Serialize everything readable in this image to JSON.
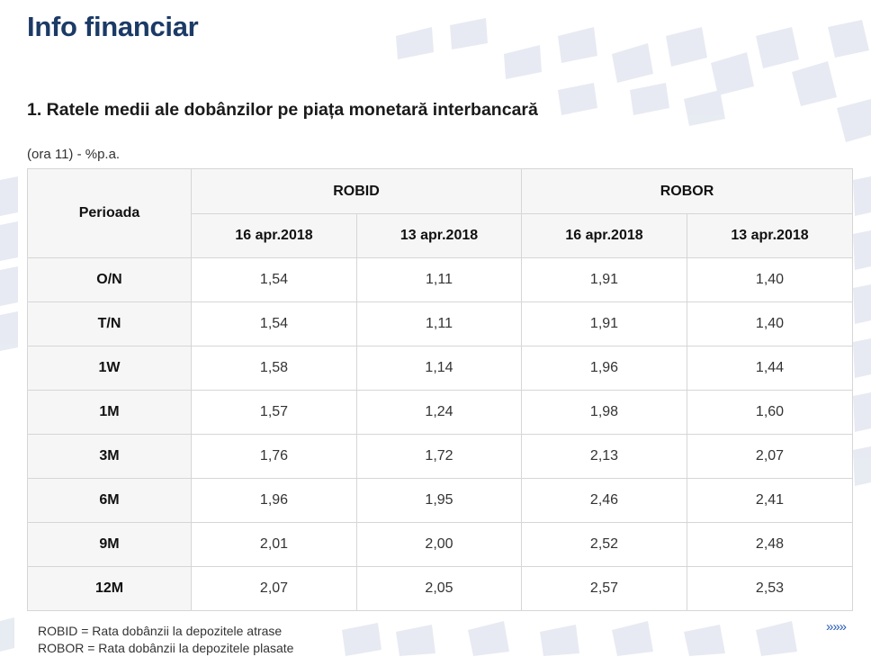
{
  "page": {
    "title": "Info financiar",
    "section_title": "1. Ratele medii ale dobânzilor pe piața monetară interbancară",
    "unit_note": "(ora 11) - %p.a."
  },
  "table": {
    "period_header": "Perioada",
    "group_headers": [
      "ROBID",
      "ROBOR"
    ],
    "date_headers": [
      "16 apr.2018",
      "13 apr.2018",
      "16 apr.2018",
      "13 apr.2018"
    ],
    "rows": [
      {
        "period": "O/N",
        "values": [
          "1,54",
          "1,11",
          "1,91",
          "1,40"
        ]
      },
      {
        "period": "T/N",
        "values": [
          "1,54",
          "1,11",
          "1,91",
          "1,40"
        ]
      },
      {
        "period": "1W",
        "values": [
          "1,58",
          "1,14",
          "1,96",
          "1,44"
        ]
      },
      {
        "period": "1M",
        "values": [
          "1,57",
          "1,24",
          "1,98",
          "1,60"
        ]
      },
      {
        "period": "3M",
        "values": [
          "1,76",
          "1,72",
          "2,13",
          "2,07"
        ]
      },
      {
        "period": "6M",
        "values": [
          "1,96",
          "1,95",
          "2,46",
          "2,41"
        ]
      },
      {
        "period": "9M",
        "values": [
          "2,01",
          "2,00",
          "2,52",
          "2,48"
        ]
      },
      {
        "period": "12M",
        "values": [
          "2,07",
          "2,05",
          "2,57",
          "2,53"
        ]
      }
    ]
  },
  "legend": {
    "robid": "ROBID = Rata dobânzii la depozitele atrase",
    "robor": "ROBOR = Rata dobânzii la depozitele plasate"
  },
  "more_link": "»»»",
  "colors": {
    "title": "#1b3a66",
    "pattern": "#dfe4ee",
    "link": "#2a5cb8",
    "header_bg": "#f5f5f5",
    "border": "#d6d6d6"
  }
}
